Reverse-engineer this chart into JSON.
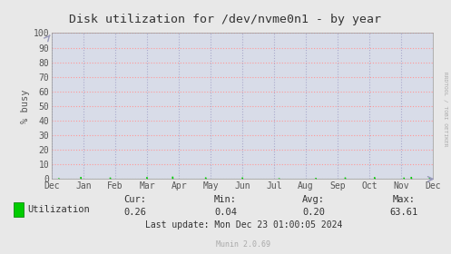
{
  "title": "Disk utilization for /dev/nvme0n1 - by year",
  "ylabel": "% busy",
  "ylim": [
    0,
    100
  ],
  "yticks": [
    0,
    10,
    20,
    30,
    40,
    50,
    60,
    70,
    80,
    90,
    100
  ],
  "x_labels": [
    "Dec",
    "Jan",
    "Feb",
    "Mar",
    "Apr",
    "May",
    "Jun",
    "Jul",
    "Aug",
    "Sep",
    "Oct",
    "Nov",
    "Dec"
  ],
  "background_color": "#e8e8e8",
  "plot_bg_color": "#d8dce8",
  "grid_color_h": "#ff9999",
  "grid_color_v": "#aaaacc",
  "line_color": "#00cc00",
  "title_color": "#333333",
  "tick_label_color": "#555555",
  "ylabel_color": "#555555",
  "legend_label": "Utilization",
  "legend_color": "#00cc00",
  "stats_cur_label": "Cur:",
  "stats_min_label": "Min:",
  "stats_avg_label": "Avg:",
  "stats_max_label": "Max:",
  "stats_cur": "0.26",
  "stats_min": "0.04",
  "stats_avg": "0.20",
  "stats_max": "63.61",
  "last_update": "Last update: Mon Dec 23 01:00:05 2024",
  "munin_version": "Munin 2.0.69",
  "right_label": "RRDTOOL / TOBI OETIKER",
  "arrow_color": "#9999bb"
}
